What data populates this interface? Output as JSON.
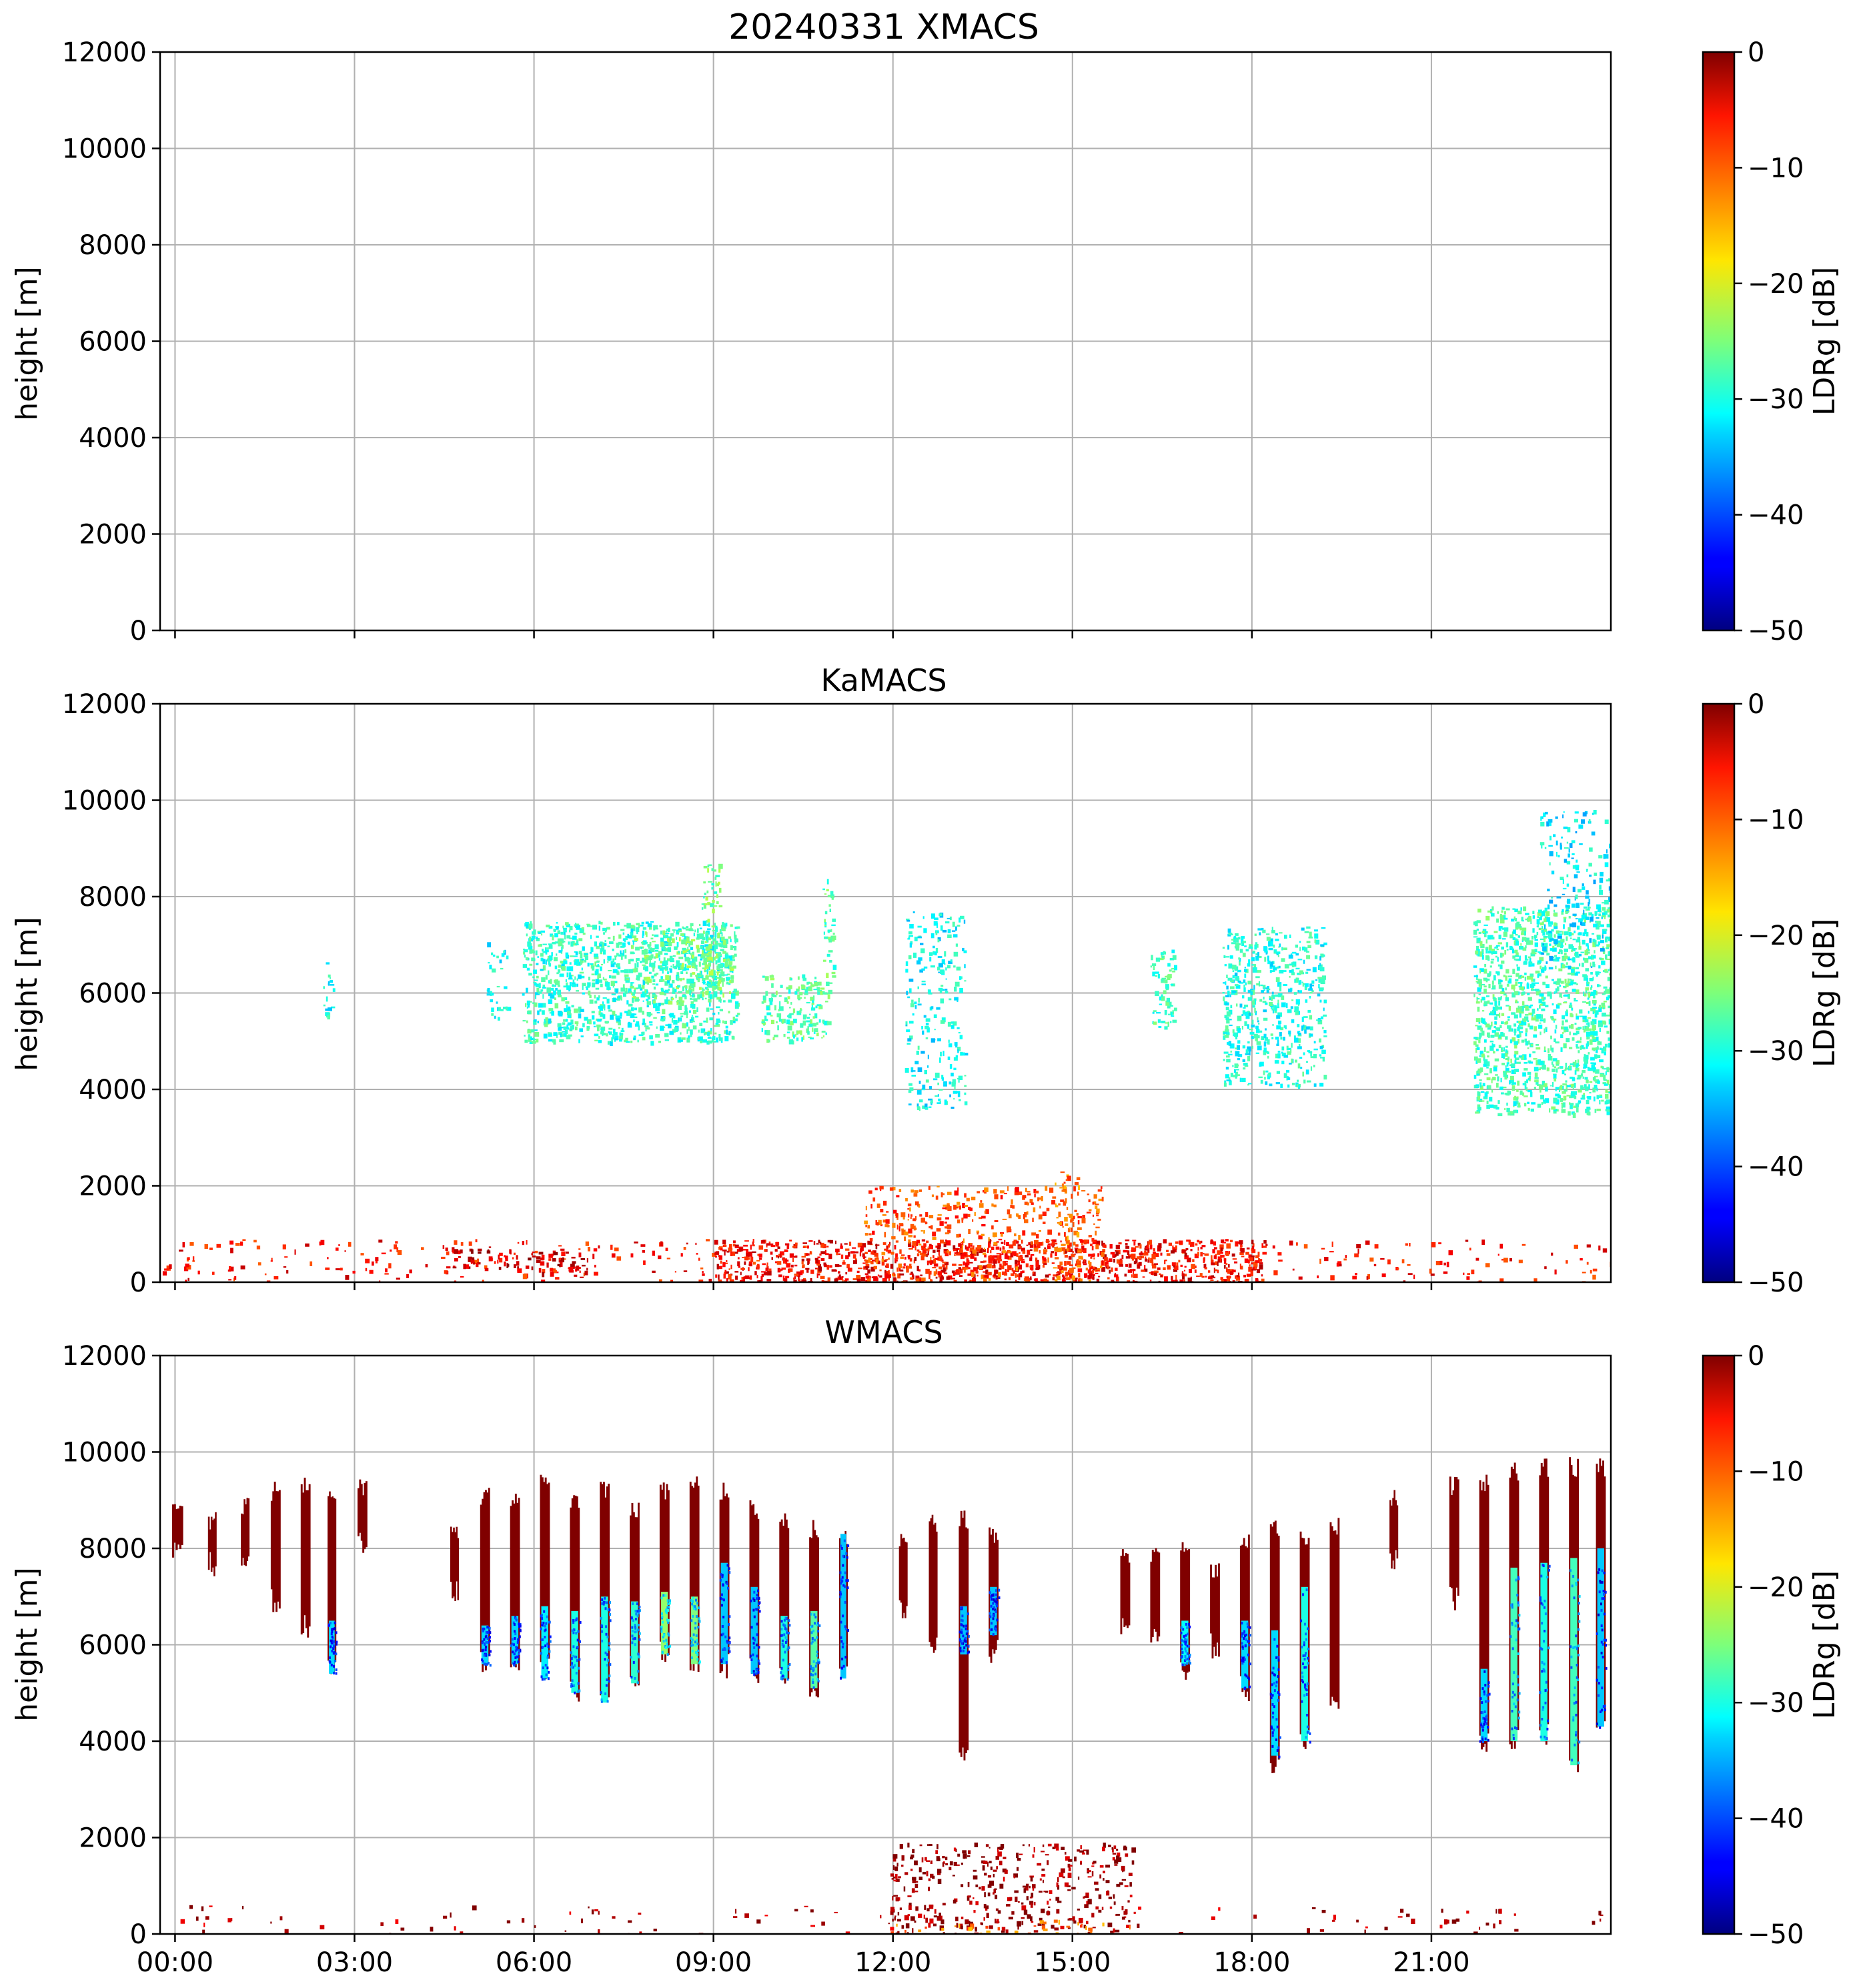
{
  "chart_data": [
    {
      "type": "heatmap",
      "title": "20240331 XMACS",
      "panel": "XMACS",
      "xlabel": "",
      "ylabel": "height [m]",
      "xlim": [
        -0.25,
        24.0
      ],
      "ylim": [
        0,
        12000
      ],
      "yticks": [
        0,
        2000,
        4000,
        6000,
        8000,
        10000,
        12000
      ],
      "xticks": [
        0,
        3,
        6,
        9,
        12,
        15,
        18,
        21
      ],
      "xtick_labels": [],
      "grid": true,
      "colorbar": {
        "label": "LDRg [dB]",
        "range": [
          -50,
          0
        ],
        "ticks": [
          0,
          -10,
          -20,
          -30,
          -40,
          -50
        ],
        "tick_labels": [
          "0",
          "−10",
          "−20",
          "−30",
          "−40",
          "−50"
        ],
        "colormap": "jet"
      },
      "regions": []
    },
    {
      "type": "heatmap",
      "title": "KaMACS",
      "panel": "KaMACS",
      "xlabel": "",
      "ylabel": "height [m]",
      "xlim": [
        -0.25,
        24.0
      ],
      "ylim": [
        0,
        12000
      ],
      "yticks": [
        0,
        2000,
        4000,
        6000,
        8000,
        10000,
        12000
      ],
      "xticks": [
        0,
        3,
        6,
        9,
        12,
        15,
        18,
        21
      ],
      "xtick_labels": [],
      "grid": true,
      "colorbar": {
        "label": "LDRg [dB]",
        "range": [
          -50,
          0
        ],
        "ticks": [
          0,
          -10,
          -20,
          -30,
          -40,
          -50
        ],
        "tick_labels": [
          "0",
          "−10",
          "−20",
          "−30",
          "−40",
          "−50"
        ],
        "colormap": "jet"
      },
      "regions": [
        {
          "t0": 2.4,
          "t1": 2.65,
          "h0": 5500,
          "h1": 6700,
          "ldr": -31,
          "density": 0.35
        },
        {
          "t0": 5.2,
          "t1": 5.55,
          "h0": 5500,
          "h1": 7100,
          "ldr": -31,
          "density": 0.35
        },
        {
          "t0": 5.8,
          "t1": 9.4,
          "h0": 5000,
          "h1": 7500,
          "ldr": -29,
          "density": 0.75
        },
        {
          "t0": 7.6,
          "t1": 9.3,
          "h0": 5800,
          "h1": 7300,
          "ldr": -26,
          "density": 0.6
        },
        {
          "t0": 8.8,
          "t1": 9.1,
          "h0": 6000,
          "h1": 8700,
          "ldr": -26,
          "density": 0.6
        },
        {
          "t0": 9.8,
          "t1": 10.9,
          "h0": 5000,
          "h1": 6400,
          "ldr": -27,
          "density": 0.7
        },
        {
          "t0": 10.8,
          "t1": 11.0,
          "h0": 5900,
          "h1": 8400,
          "ldr": -27,
          "density": 0.5
        },
        {
          "t0": 12.2,
          "t1": 13.2,
          "h0": 3600,
          "h1": 7700,
          "ldr": -31,
          "density": 0.35
        },
        {
          "t0": 16.3,
          "t1": 16.7,
          "h0": 5300,
          "h1": 6900,
          "ldr": -28,
          "density": 0.65
        },
        {
          "t0": 17.5,
          "t1": 19.2,
          "h0": 4100,
          "h1": 7400,
          "ldr": -30,
          "density": 0.6
        },
        {
          "t0": 21.7,
          "t1": 24.0,
          "h0": 3500,
          "h1": 7800,
          "ldr": -28,
          "density": 0.8
        },
        {
          "t0": 22.8,
          "t1": 24.0,
          "h0": 6500,
          "h1": 9800,
          "ldr": -32,
          "density": 0.3
        },
        {
          "t0": -0.25,
          "t1": 24.0,
          "h0": 0,
          "h1": 900,
          "ldr": -7,
          "density": 0.12
        },
        {
          "t0": 4.6,
          "t1": 7.0,
          "h0": 200,
          "h1": 700,
          "ldr": -4,
          "density": 0.45
        },
        {
          "t0": 9.0,
          "t1": 18.2,
          "h0": 0,
          "h1": 900,
          "ldr": -6,
          "density": 0.7
        },
        {
          "t0": 11.5,
          "t1": 15.5,
          "h0": 0,
          "h1": 2000,
          "ldr": -10,
          "density": 0.35
        },
        {
          "t0": 14.7,
          "t1": 15.1,
          "h0": 0,
          "h1": 2300,
          "ldr": -12,
          "density": 0.45
        }
      ]
    },
    {
      "type": "heatmap",
      "title": "WMACS",
      "panel": "WMACS",
      "xlabel": "",
      "ylabel": "height [m]",
      "xlim": [
        -0.25,
        24.0
      ],
      "ylim": [
        0,
        12000
      ],
      "yticks": [
        0,
        2000,
        4000,
        6000,
        8000,
        10000,
        12000
      ],
      "xticks": [
        0,
        3,
        6,
        9,
        12,
        15,
        18,
        21
      ],
      "xtick_labels": [
        "00:00",
        "03:00",
        "06:00",
        "09:00",
        "12:00",
        "15:00",
        "18:00",
        "21:00"
      ],
      "grid": true,
      "colorbar": {
        "label": "LDRg [dB]",
        "range": [
          -50,
          0
        ],
        "ticks": [
          0,
          -10,
          -20,
          -30,
          -40,
          -50
        ],
        "tick_labels": [
          "0",
          "−10",
          "−20",
          "−30",
          "−40",
          "−50"
        ],
        "colormap": "jet"
      },
      "stripes": [
        {
          "t": -0.05,
          "w": 0.18,
          "h0": 7700,
          "h1": 9000,
          "core": null
        },
        {
          "t": 0.55,
          "w": 0.14,
          "h0": 7400,
          "h1": 8800,
          "core": null
        },
        {
          "t": 1.1,
          "w": 0.14,
          "h0": 7300,
          "h1": 9100,
          "core": null
        },
        {
          "t": 1.6,
          "w": 0.16,
          "h0": 6600,
          "h1": 9400,
          "core": null
        },
        {
          "t": 2.1,
          "w": 0.16,
          "h0": 6100,
          "h1": 9500,
          "core": null
        },
        {
          "t": 2.55,
          "w": 0.14,
          "h0": 5200,
          "h1": 9400,
          "core": [
            5400,
            6500,
            -33
          ]
        },
        {
          "t": 3.05,
          "w": 0.16,
          "h0": 7800,
          "h1": 9500,
          "core": null
        },
        {
          "t": 4.6,
          "w": 0.14,
          "h0": 6800,
          "h1": 8500,
          "core": null
        },
        {
          "t": 5.1,
          "w": 0.16,
          "h0": 5400,
          "h1": 9300,
          "core": [
            5600,
            6400,
            -33
          ]
        },
        {
          "t": 5.6,
          "w": 0.16,
          "h0": 5300,
          "h1": 9200,
          "core": [
            5600,
            6600,
            -33
          ]
        },
        {
          "t": 6.1,
          "w": 0.16,
          "h0": 5200,
          "h1": 9600,
          "core": [
            5300,
            6800,
            -32
          ]
        },
        {
          "t": 6.6,
          "w": 0.16,
          "h0": 4800,
          "h1": 9200,
          "core": [
            5000,
            6700,
            -30
          ]
        },
        {
          "t": 7.1,
          "w": 0.16,
          "h0": 4600,
          "h1": 9400,
          "core": [
            4800,
            7000,
            -30
          ]
        },
        {
          "t": 7.6,
          "w": 0.16,
          "h0": 5100,
          "h1": 9000,
          "core": [
            5200,
            6900,
            -29
          ]
        },
        {
          "t": 8.1,
          "w": 0.16,
          "h0": 5600,
          "h1": 9400,
          "core": [
            5800,
            7100,
            -24
          ]
        },
        {
          "t": 8.6,
          "w": 0.16,
          "h0": 5400,
          "h1": 9500,
          "core": [
            5600,
            7000,
            -25
          ]
        },
        {
          "t": 9.1,
          "w": 0.16,
          "h0": 5300,
          "h1": 9400,
          "core": [
            5600,
            7700,
            -34
          ]
        },
        {
          "t": 9.6,
          "w": 0.16,
          "h0": 5200,
          "h1": 9000,
          "core": [
            5400,
            7200,
            -34
          ]
        },
        {
          "t": 10.1,
          "w": 0.16,
          "h0": 5000,
          "h1": 8800,
          "core": [
            5300,
            6600,
            -30
          ]
        },
        {
          "t": 10.6,
          "w": 0.16,
          "h0": 4900,
          "h1": 8600,
          "core": [
            5100,
            6700,
            -27
          ]
        },
        {
          "t": 11.1,
          "w": 0.14,
          "h0": 5200,
          "h1": 8500,
          "core": [
            5300,
            8300,
            -34
          ]
        },
        {
          "t": 12.1,
          "w": 0.14,
          "h0": 6500,
          "h1": 8400,
          "core": null
        },
        {
          "t": 12.6,
          "w": 0.14,
          "h0": 5800,
          "h1": 8700,
          "core": null
        },
        {
          "t": 13.1,
          "w": 0.16,
          "h0": 3400,
          "h1": 8800,
          "core": [
            5800,
            6800,
            -34
          ]
        },
        {
          "t": 13.6,
          "w": 0.16,
          "h0": 5600,
          "h1": 8500,
          "core": [
            6200,
            7200,
            -34
          ]
        },
        {
          "t": 15.8,
          "w": 0.16,
          "h0": 6200,
          "h1": 8000,
          "core": null
        },
        {
          "t": 16.3,
          "w": 0.16,
          "h0": 6000,
          "h1": 8100,
          "core": null
        },
        {
          "t": 16.8,
          "w": 0.16,
          "h0": 5100,
          "h1": 8300,
          "core": [
            5600,
            6500,
            -31
          ]
        },
        {
          "t": 17.3,
          "w": 0.16,
          "h0": 5700,
          "h1": 7800,
          "core": null
        },
        {
          "t": 17.8,
          "w": 0.16,
          "h0": 4800,
          "h1": 8400,
          "core": [
            5100,
            6500,
            -33
          ]
        },
        {
          "t": 18.3,
          "w": 0.16,
          "h0": 3300,
          "h1": 8600,
          "core": [
            3700,
            6300,
            -33
          ]
        },
        {
          "t": 18.8,
          "w": 0.16,
          "h0": 3800,
          "h1": 8400,
          "core": [
            4000,
            7200,
            -30
          ]
        },
        {
          "t": 19.3,
          "w": 0.16,
          "h0": 4500,
          "h1": 8700,
          "core": null
        },
        {
          "t": 20.3,
          "w": 0.14,
          "h0": 7500,
          "h1": 9300,
          "core": null
        },
        {
          "t": 21.3,
          "w": 0.16,
          "h0": 6700,
          "h1": 9500,
          "core": null
        },
        {
          "t": 21.8,
          "w": 0.16,
          "h0": 3700,
          "h1": 9600,
          "core": [
            4000,
            5500,
            -33
          ]
        },
        {
          "t": 22.3,
          "w": 0.16,
          "h0": 3800,
          "h1": 9800,
          "core": [
            4000,
            7600,
            -28
          ]
        },
        {
          "t": 22.8,
          "w": 0.16,
          "h0": 3900,
          "h1": 9900,
          "core": [
            4000,
            7700,
            -30
          ]
        },
        {
          "t": 23.3,
          "w": 0.16,
          "h0": 3300,
          "h1": 9900,
          "core": [
            3500,
            7800,
            -28
          ]
        },
        {
          "t": 23.75,
          "w": 0.16,
          "h0": 4100,
          "h1": 9900,
          "core": [
            4300,
            8000,
            -34
          ]
        }
      ],
      "regions": [
        {
          "t0": -0.25,
          "t1": 24.0,
          "h0": 0,
          "h1": 600,
          "ldr": -2,
          "density": 0.05
        },
        {
          "t0": 11.9,
          "t1": 16.0,
          "h0": 0,
          "h1": 1900,
          "ldr": -1,
          "density": 0.3
        },
        {
          "t0": 11.9,
          "t1": 16.0,
          "h0": 0,
          "h1": 300,
          "ldr": -12,
          "density": 0.2
        }
      ]
    }
  ]
}
